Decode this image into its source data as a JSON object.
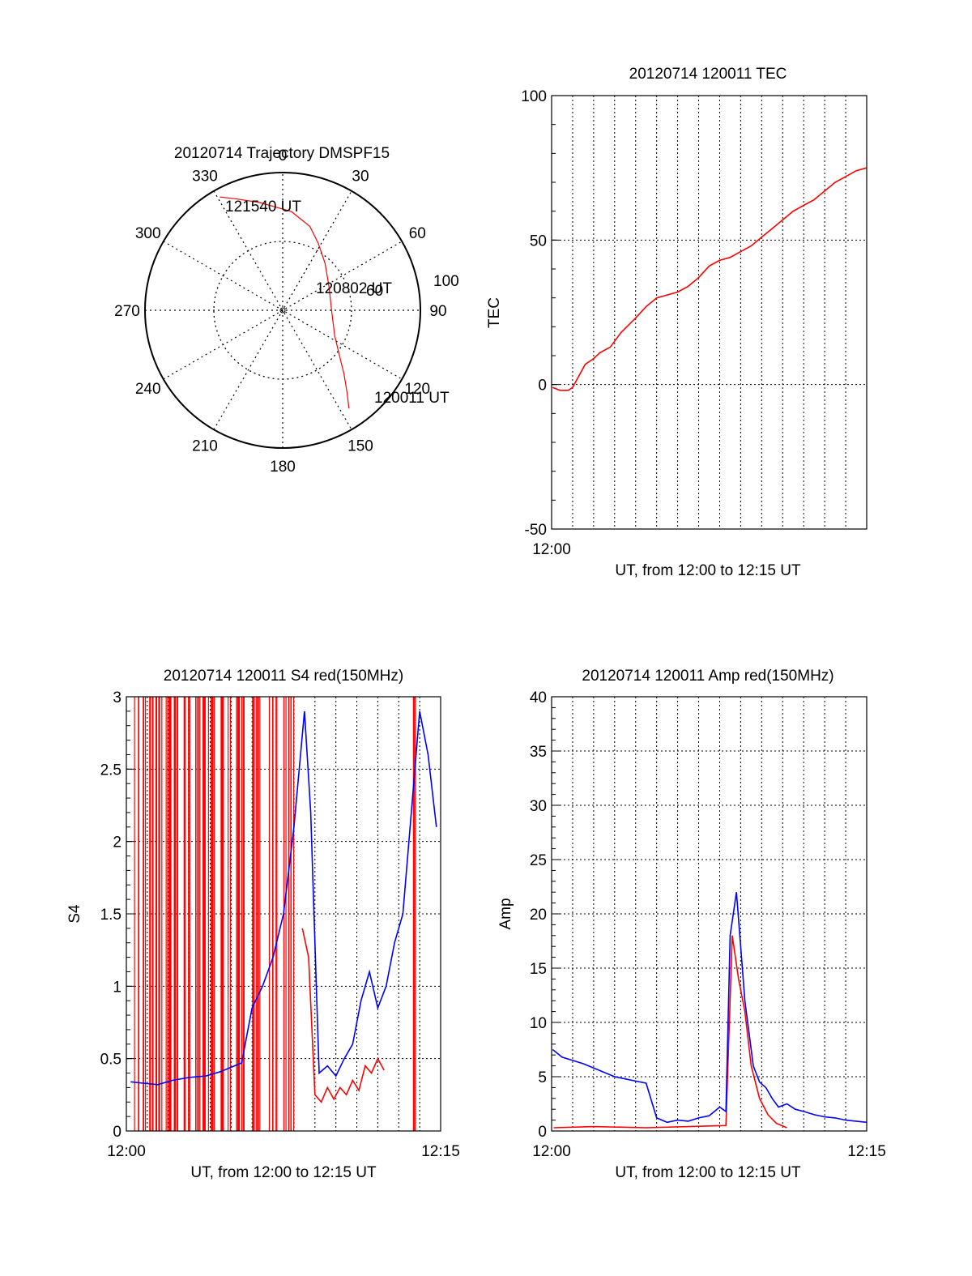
{
  "colors": {
    "red": "#ff0000",
    "blue": "#0000ff",
    "axis": "#000000",
    "grid": "#000000"
  },
  "chart_data": [
    {
      "type": "polar",
      "title": "20120714 Trajectory DMSPF15",
      "angle_labels": [
        "0",
        "30",
        "60",
        "90",
        "120",
        "150",
        "180",
        "210",
        "240",
        "270",
        "300",
        "330"
      ],
      "radius_labels": [
        "60",
        "100"
      ],
      "start_label": "120011 UT",
      "mid_label": "120802 UT",
      "end_label": "121540 UT",
      "trajectory": {
        "name": "",
        "azimuth_deg": [
          146,
          142,
          136,
          128,
          116,
          95,
          62,
          42,
          28,
          18,
          5,
          348,
          337,
          331
        ],
        "radius": [
          0.86,
          0.76,
          0.64,
          0.52,
          0.42,
          0.36,
          0.38,
          0.46,
          0.55,
          0.64,
          0.72,
          0.8,
          0.88,
          0.94
        ]
      }
    },
    {
      "type": "line",
      "title": "20120714 120011 TEC",
      "xlabel": "UT, from 12:00 to 12:15 UT",
      "ylabel": "TEC",
      "xlim": [
        0,
        15
      ],
      "ylim": [
        -50,
        100
      ],
      "yticks": [
        "100",
        "50",
        "0",
        "-50"
      ],
      "xticks": [
        "12:00"
      ],
      "grid": true,
      "series": [
        {
          "name": "",
          "color": "red",
          "x": [
            0.05,
            0.4,
            0.8,
            1.0,
            1.3,
            1.6,
            2.0,
            2.3,
            2.8,
            3.3,
            4.0,
            4.5,
            5.0,
            5.5,
            6.0,
            6.5,
            7.0,
            7.5,
            8.0,
            8.5,
            9.0,
            9.5,
            10.0,
            10.5,
            11.0,
            11.5,
            12.0,
            12.5,
            13.0,
            13.5,
            14.0,
            14.5,
            15.0
          ],
          "y": [
            -1,
            -2,
            -2,
            -1,
            3,
            7,
            9,
            11,
            13,
            18,
            23,
            27,
            30,
            31,
            32,
            34,
            37,
            41,
            43,
            44,
            46,
            48,
            51,
            54,
            57,
            60,
            62,
            64,
            67,
            70,
            72,
            74,
            75
          ]
        }
      ]
    },
    {
      "type": "line",
      "title": "20120714 120011 S4 red(150MHz)",
      "xlabel": "UT, from 12:00 to 12:15 UT",
      "ylabel": "S4",
      "xlim": [
        0,
        15
      ],
      "ylim": [
        0,
        3
      ],
      "yticks": [
        "3",
        "2.5",
        "2",
        "1.5",
        "1",
        "0.5",
        "0"
      ],
      "xticks": [
        "12:00",
        "12:15"
      ],
      "grid": true,
      "series": [
        {
          "name": "",
          "color": "red",
          "x": [
            8.4,
            8.7,
            9.0,
            9.3,
            9.6,
            9.9,
            10.2,
            10.5,
            10.8,
            11.1,
            11.4,
            11.7,
            12.0,
            12.3
          ],
          "y": [
            1.4,
            1.2,
            0.25,
            0.2,
            0.3,
            0.22,
            0.3,
            0.25,
            0.35,
            0.28,
            0.45,
            0.4,
            0.5,
            0.42
          ]
        },
        {
          "name": "",
          "color": "blue",
          "x": [
            0.2,
            0.8,
            1.5,
            2.2,
            3.0,
            3.8,
            4.5,
            5.0,
            5.5,
            6.0,
            6.5,
            7.0,
            7.5,
            8.0,
            8.5,
            8.8,
            9.2,
            9.6,
            10.0,
            10.4,
            10.8,
            11.2,
            11.6,
            12.0,
            12.4,
            12.8,
            13.2,
            13.6,
            14.0,
            14.4,
            14.8
          ],
          "y": [
            0.34,
            0.33,
            0.32,
            0.35,
            0.37,
            0.38,
            0.41,
            0.44,
            0.47,
            0.85,
            1.0,
            1.2,
            1.5,
            2.1,
            2.9,
            2.2,
            0.4,
            0.45,
            0.38,
            0.5,
            0.6,
            0.9,
            1.1,
            0.85,
            1.0,
            1.3,
            1.5,
            2.2,
            2.9,
            2.6,
            2.1
          ]
        }
      ]
    },
    {
      "type": "line",
      "title": "20120714 120011 Amp red(150MHz)",
      "xlabel": "UT, from 12:00 to 12:15 UT",
      "ylabel": "Amp",
      "xlim": [
        0,
        15
      ],
      "ylim": [
        0,
        40
      ],
      "yticks": [
        "40",
        "35",
        "30",
        "25",
        "20",
        "15",
        "10",
        "5",
        "0"
      ],
      "xticks": [
        "12:00",
        "12:15"
      ],
      "grid": true,
      "series": [
        {
          "name": "",
          "color": "red",
          "x": [
            0.1,
            2.0,
            4.5,
            8.3,
            8.6,
            8.9,
            9.2,
            9.5,
            9.9,
            10.3,
            10.7,
            11.2
          ],
          "y": [
            0.3,
            0.4,
            0.3,
            0.5,
            18,
            14,
            11,
            6,
            3,
            1.5,
            0.7,
            0.3
          ]
        },
        {
          "name": "",
          "color": "blue",
          "x": [
            0.05,
            0.5,
            1.0,
            1.5,
            2.0,
            2.5,
            3.0,
            3.5,
            4.0,
            4.5,
            5.0,
            5.5,
            6.0,
            6.5,
            7.0,
            7.5,
            8.0,
            8.3,
            8.5,
            8.8,
            9.0,
            9.2,
            9.4,
            9.6,
            9.9,
            10.2,
            10.5,
            10.8,
            11.2,
            11.6,
            12.0,
            12.5,
            13.0,
            13.5,
            14.0,
            14.5,
            15.0
          ],
          "y": [
            7.5,
            6.8,
            6.5,
            6.2,
            5.8,
            5.4,
            5.0,
            4.8,
            4.6,
            4.4,
            1.2,
            0.8,
            1.0,
            0.9,
            1.2,
            1.4,
            2.2,
            1.8,
            18,
            22,
            17,
            12,
            9,
            6,
            4.5,
            4,
            3,
            2.2,
            2.5,
            2.0,
            1.8,
            1.5,
            1.3,
            1.2,
            1.0,
            0.9,
            0.8
          ]
        }
      ]
    }
  ]
}
